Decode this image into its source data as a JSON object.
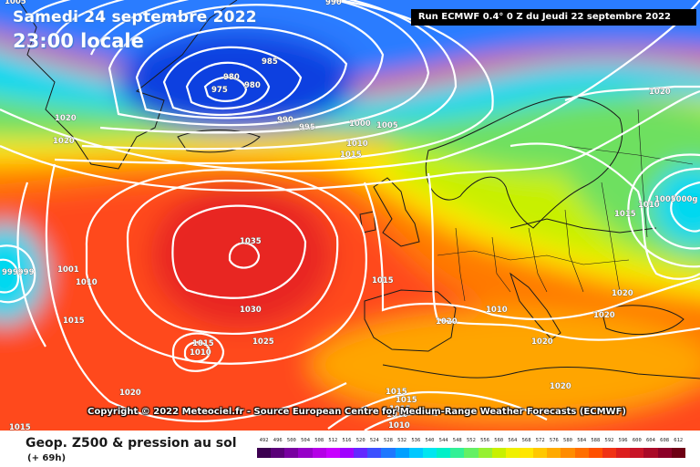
{
  "header": {
    "date_text": "Samedi 24 septembre 2022",
    "local_time_text": "23:00 locale",
    "run_text": "Run ECMWF 0.4° 0 Z du Jeudi 22 septembre 2022"
  },
  "copyright": "Copyright © 2022 Meteociel.fr - Source European Centre for Medium-Range Weather Forecasts (ECMWF)",
  "footer": {
    "product_title": "Geop. Z500 & pression au sol",
    "forecast_hour": "(+ 69h)"
  },
  "colorbar": {
    "ticks": [
      "492",
      "496",
      "500",
      "504",
      "508",
      "512",
      "516",
      "520",
      "524",
      "528",
      "532",
      "536",
      "540",
      "544",
      "548",
      "552",
      "556",
      "560",
      "564",
      "568",
      "572",
      "576",
      "580",
      "584",
      "588",
      "592",
      "596",
      "600",
      "604",
      "608",
      "612"
    ],
    "colors": [
      "#3c0050",
      "#5a0078",
      "#7800a0",
      "#9600c8",
      "#b400e6",
      "#c800ff",
      "#a000ff",
      "#6428ff",
      "#3c50ff",
      "#1e78ff",
      "#00a0ff",
      "#00c8ff",
      "#00e6f0",
      "#00f0c8",
      "#32f096",
      "#64f064",
      "#96f032",
      "#c8f000",
      "#f0f000",
      "#ffe600",
      "#ffc800",
      "#ffaa00",
      "#ff8c00",
      "#ff6e00",
      "#ff5000",
      "#f03214",
      "#dc1e1e",
      "#c81428",
      "#aa0a28",
      "#8c0028",
      "#6e0014"
    ]
  },
  "pressure_labels": [
    "1005",
    "990",
    "985",
    "980",
    "980",
    "975",
    "990",
    "995",
    "1000",
    "1005",
    "1010",
    "1015",
    "1020",
    "1020",
    "1020",
    "1035",
    "1030",
    "1025",
    "1015",
    "1010",
    "1020",
    "1015",
    "1015",
    "1010",
    "1005",
    "1010",
    "1015",
    "1020",
    "1010",
    "1020",
    "1020",
    "1020",
    "1020",
    "1015",
    "1010",
    "1005000g",
    "1015",
    "1010",
    "1015",
    "1015",
    "1010",
    "1020",
    "1015",
    "999999",
    "1001"
  ],
  "map_colors": {
    "deep_blue": "#1040e0",
    "blue": "#2a7bff",
    "cyan": "#00d8f0",
    "green": "#6ee060",
    "yellow_green": "#c8f000",
    "yellow": "#ffe800",
    "orange": "#ffa500",
    "dark_orange": "#ff7a00",
    "red": "#ff4a1a",
    "deep_red": "#e82820",
    "isobar": "#ffffff",
    "coast": "#1a1a1a"
  }
}
